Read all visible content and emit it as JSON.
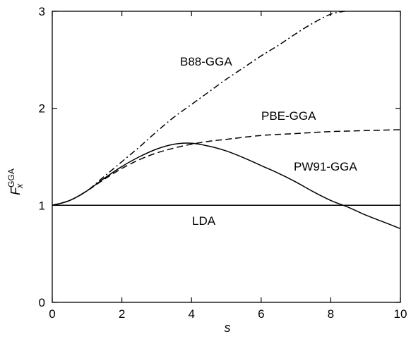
{
  "chart_data": {
    "type": "line",
    "xlabel": "s",
    "ylabel": {
      "main": "F",
      "sub": "x",
      "sup": "GGA"
    },
    "xlim": [
      0,
      10
    ],
    "ylim": [
      0,
      3
    ],
    "xticks": [
      0,
      2,
      4,
      6,
      8,
      10
    ],
    "yticks": [
      0,
      1,
      2,
      3
    ],
    "grid": false,
    "legend": "none",
    "annotations": [
      {
        "text": "B88-GGA",
        "series": "B88-GGA"
      },
      {
        "text": "PBE-GGA",
        "series": "PBE-GGA"
      },
      {
        "text": "PW91-GGA",
        "series": "PW91-GGA"
      },
      {
        "text": "LDA",
        "series": "LDA"
      }
    ],
    "series": [
      {
        "name": "LDA",
        "style": "solid",
        "x": [
          0,
          10
        ],
        "y": [
          1.0,
          1.0
        ]
      },
      {
        "name": "B88-GGA",
        "style": "dashdot",
        "x": [
          0,
          0.5,
          1,
          1.5,
          2,
          2.5,
          3,
          3.5,
          4,
          4.5,
          5,
          5.5,
          6,
          6.5,
          7,
          7.5,
          8,
          8.4
        ],
        "y": [
          1.0,
          1.05,
          1.15,
          1.3,
          1.45,
          1.6,
          1.76,
          1.91,
          2.04,
          2.17,
          2.3,
          2.42,
          2.54,
          2.65,
          2.77,
          2.88,
          2.97,
          3.0
        ]
      },
      {
        "name": "PBE-GGA",
        "style": "dashed",
        "x": [
          0,
          0.5,
          1,
          1.5,
          2,
          2.5,
          3,
          3.5,
          4,
          4.5,
          5,
          6,
          7,
          8,
          9,
          10
        ],
        "y": [
          1.0,
          1.05,
          1.15,
          1.27,
          1.38,
          1.47,
          1.54,
          1.59,
          1.63,
          1.66,
          1.68,
          1.72,
          1.74,
          1.76,
          1.77,
          1.78
        ]
      },
      {
        "name": "PW91-GGA",
        "style": "solid",
        "x": [
          0,
          0.5,
          1,
          1.5,
          2,
          2.5,
          3,
          3.5,
          4,
          4.5,
          5,
          5.5,
          6,
          6.5,
          7,
          7.5,
          8,
          8.5,
          9,
          9.5,
          10
        ],
        "y": [
          1.0,
          1.05,
          1.15,
          1.28,
          1.4,
          1.5,
          1.58,
          1.63,
          1.64,
          1.61,
          1.56,
          1.49,
          1.41,
          1.33,
          1.24,
          1.14,
          1.05,
          0.98,
          0.9,
          0.83,
          0.76
        ]
      }
    ]
  }
}
